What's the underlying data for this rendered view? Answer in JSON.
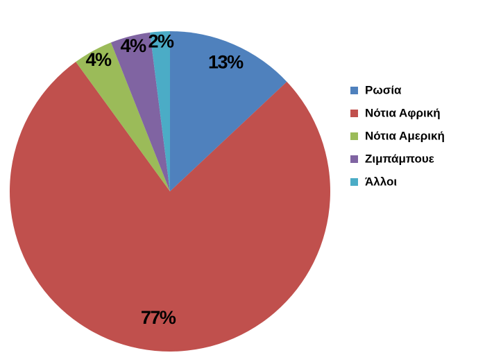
{
  "chart_data": {
    "type": "pie",
    "categories": [
      "Ρωσία",
      "Νότια Αφρική",
      "Νότια Αμερική",
      "Ζιμπάμπουε",
      "Άλλοι"
    ],
    "values": [
      13,
      77,
      4,
      4,
      2
    ],
    "value_labels": [
      "13%",
      "77%",
      "4%",
      "4%",
      "2%"
    ],
    "colors": [
      "#4f81bd",
      "#c0504d",
      "#9bbb59",
      "#8064a2",
      "#4bacc6"
    ],
    "legend": "right"
  }
}
